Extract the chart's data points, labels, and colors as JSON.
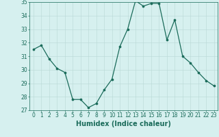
{
  "x": [
    0,
    1,
    2,
    3,
    4,
    5,
    6,
    7,
    8,
    9,
    10,
    11,
    12,
    13,
    14,
    15,
    16,
    17,
    18,
    19,
    20,
    21,
    22,
    23
  ],
  "y": [
    31.5,
    31.8,
    30.8,
    30.1,
    29.8,
    27.8,
    27.8,
    27.2,
    27.5,
    28.5,
    29.3,
    31.7,
    33.0,
    35.1,
    34.7,
    34.9,
    34.9,
    32.2,
    33.7,
    31.0,
    30.5,
    29.8,
    29.2,
    28.8
  ],
  "line_color": "#1a6b5a",
  "marker_color": "#1a6b5a",
  "bg_color": "#d6f0ef",
  "grid_color": "#b8d8d5",
  "xlabel": "Humidex (Indice chaleur)",
  "ylim": [
    27,
    35
  ],
  "xlim": [
    -0.5,
    23.5
  ],
  "yticks": [
    27,
    28,
    29,
    30,
    31,
    32,
    33,
    34,
    35
  ],
  "xticks": [
    0,
    1,
    2,
    3,
    4,
    5,
    6,
    7,
    8,
    9,
    10,
    11,
    12,
    13,
    14,
    15,
    16,
    17,
    18,
    19,
    20,
    21,
    22,
    23
  ],
  "tick_fontsize": 5.5,
  "xlabel_fontsize": 7.0
}
